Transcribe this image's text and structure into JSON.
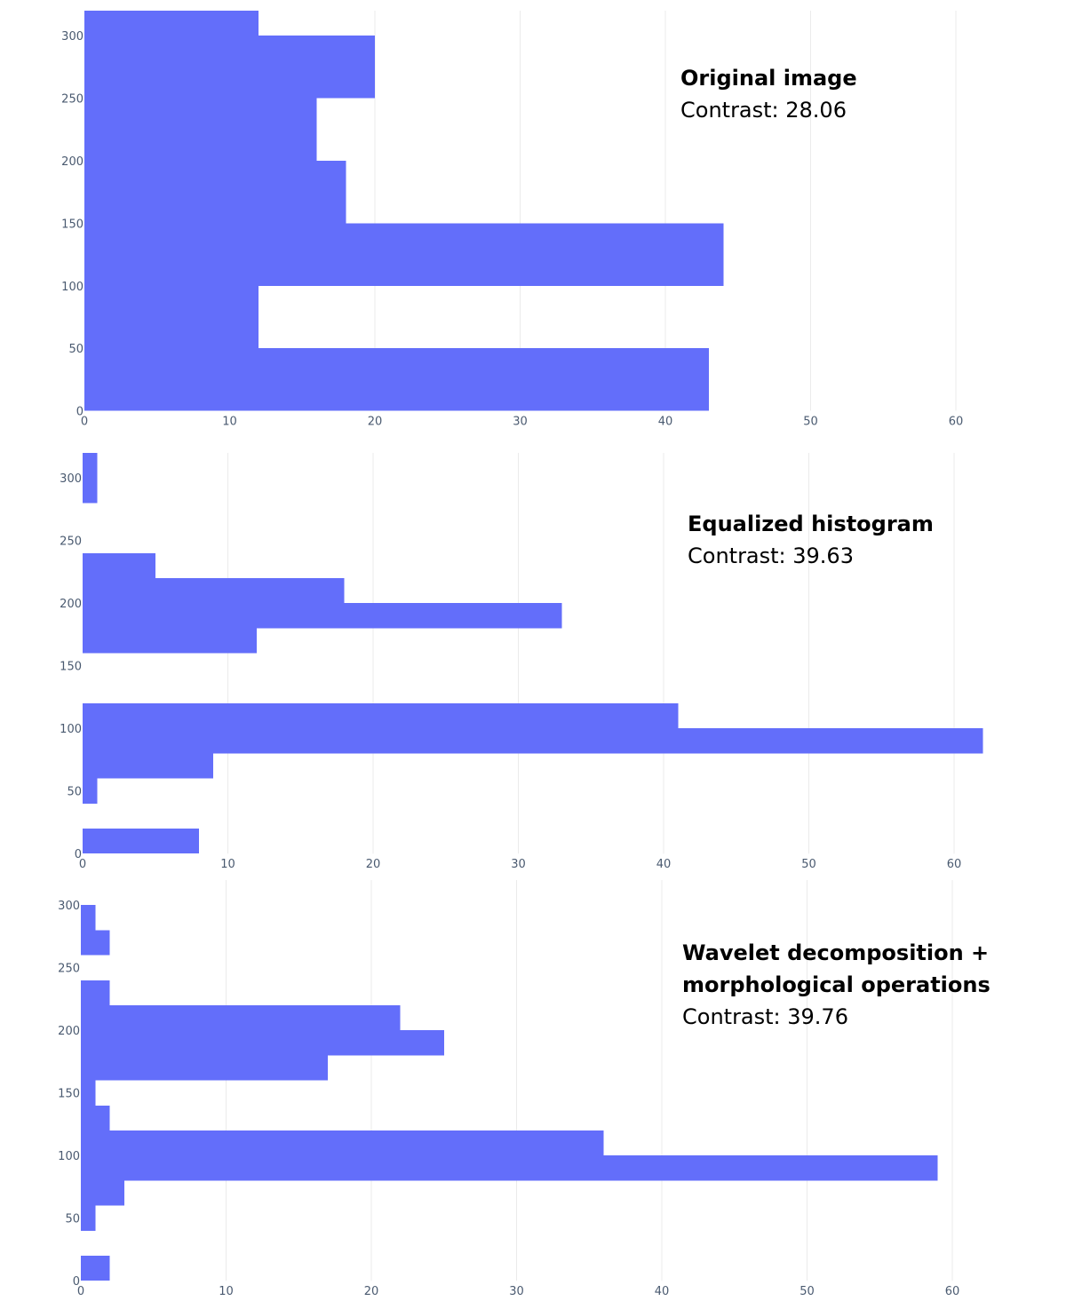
{
  "colors": {
    "bar": "#636efa",
    "grid": "#ebebeb",
    "tick": "#4a5a70",
    "text": "#000000",
    "background": "#ffffff"
  },
  "chart_data": [
    {
      "type": "bar",
      "orientation": "horizontal",
      "title": "",
      "xlabel": "",
      "ylabel": "",
      "xlim": [
        0,
        60
      ],
      "ylim": [
        0,
        320
      ],
      "grid": true,
      "annotation": {
        "title_lines": [
          "Original image"
        ],
        "subtitle": "Contrast: 28.06"
      },
      "bins": [
        {
          "y0": 0,
          "y1": 50,
          "value": 43
        },
        {
          "y0": 50,
          "y1": 100,
          "value": 12
        },
        {
          "y0": 100,
          "y1": 150,
          "value": 44
        },
        {
          "y0": 150,
          "y1": 200,
          "value": 18
        },
        {
          "y0": 200,
          "y1": 250,
          "value": 16
        },
        {
          "y0": 250,
          "y1": 300,
          "value": 20
        },
        {
          "y0": 300,
          "y1": 320,
          "value": 12
        }
      ],
      "x_ticks": [
        0,
        10,
        20,
        30,
        40,
        50,
        60
      ],
      "y_ticks": [
        0,
        50,
        100,
        150,
        200,
        250,
        300
      ]
    },
    {
      "type": "bar",
      "orientation": "horizontal",
      "title": "",
      "xlabel": "",
      "ylabel": "",
      "xlim": [
        0,
        60
      ],
      "ylim": [
        0,
        320
      ],
      "grid": true,
      "annotation": {
        "title_lines": [
          "Equalized histogram"
        ],
        "subtitle": "Contrast: 39.63"
      },
      "bins": [
        {
          "y0": 0,
          "y1": 20,
          "value": 8
        },
        {
          "y0": 20,
          "y1": 40,
          "value": 0
        },
        {
          "y0": 40,
          "y1": 60,
          "value": 1
        },
        {
          "y0": 60,
          "y1": 80,
          "value": 9
        },
        {
          "y0": 80,
          "y1": 100,
          "value": 62
        },
        {
          "y0": 100,
          "y1": 120,
          "value": 41
        },
        {
          "y0": 120,
          "y1": 140,
          "value": 0
        },
        {
          "y0": 140,
          "y1": 160,
          "value": 0
        },
        {
          "y0": 160,
          "y1": 180,
          "value": 12
        },
        {
          "y0": 180,
          "y1": 200,
          "value": 33
        },
        {
          "y0": 200,
          "y1": 220,
          "value": 18
        },
        {
          "y0": 220,
          "y1": 240,
          "value": 5
        },
        {
          "y0": 240,
          "y1": 260,
          "value": 0
        },
        {
          "y0": 260,
          "y1": 280,
          "value": 0
        },
        {
          "y0": 280,
          "y1": 300,
          "value": 1
        },
        {
          "y0": 300,
          "y1": 320,
          "value": 1
        }
      ],
      "x_ticks": [
        0,
        10,
        20,
        30,
        40,
        50,
        60
      ],
      "y_ticks": [
        0,
        50,
        100,
        150,
        200,
        250,
        300
      ]
    },
    {
      "type": "bar",
      "orientation": "horizontal",
      "title": "",
      "xlabel": "",
      "ylabel": "",
      "xlim": [
        0,
        60
      ],
      "ylim": [
        0,
        320
      ],
      "grid": true,
      "annotation": {
        "title_lines": [
          "Wavelet decomposition +",
          "morphological operations"
        ],
        "subtitle": "Contrast: 39.76"
      },
      "bins": [
        {
          "y0": 0,
          "y1": 20,
          "value": 2
        },
        {
          "y0": 20,
          "y1": 40,
          "value": 0
        },
        {
          "y0": 40,
          "y1": 60,
          "value": 1
        },
        {
          "y0": 60,
          "y1": 80,
          "value": 3
        },
        {
          "y0": 80,
          "y1": 100,
          "value": 59
        },
        {
          "y0": 100,
          "y1": 120,
          "value": 36
        },
        {
          "y0": 120,
          "y1": 140,
          "value": 2
        },
        {
          "y0": 140,
          "y1": 160,
          "value": 1
        },
        {
          "y0": 160,
          "y1": 180,
          "value": 17
        },
        {
          "y0": 180,
          "y1": 200,
          "value": 25
        },
        {
          "y0": 200,
          "y1": 220,
          "value": 22
        },
        {
          "y0": 220,
          "y1": 240,
          "value": 2
        },
        {
          "y0": 240,
          "y1": 260,
          "value": 0
        },
        {
          "y0": 260,
          "y1": 280,
          "value": 2
        },
        {
          "y0": 280,
          "y1": 300,
          "value": 1
        },
        {
          "y0": 300,
          "y1": 320,
          "value": 0
        }
      ],
      "x_ticks": [
        0,
        10,
        20,
        30,
        40,
        50,
        60
      ],
      "y_ticks": [
        0,
        50,
        100,
        150,
        200,
        250,
        300
      ]
    }
  ]
}
